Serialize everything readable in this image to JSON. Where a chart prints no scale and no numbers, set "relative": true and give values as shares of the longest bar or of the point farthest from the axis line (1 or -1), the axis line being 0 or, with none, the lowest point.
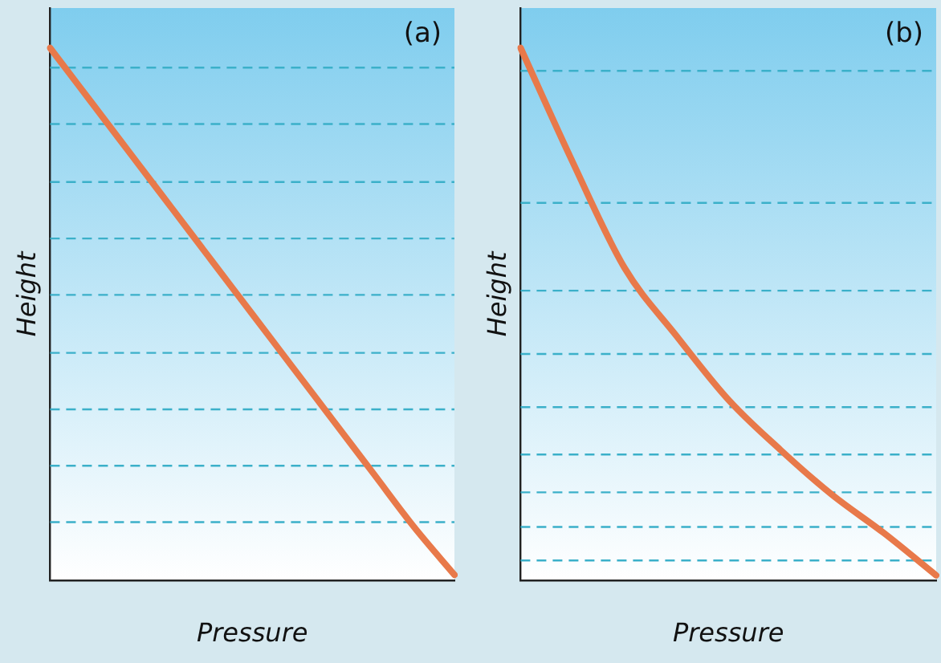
{
  "chart_data": [
    {
      "type": "line",
      "relative": true,
      "xlabel": "Pressure",
      "ylabel": "Height",
      "annotations": [
        "(a)"
      ],
      "marker": "none",
      "grid": false,
      "legend": false,
      "categories": [
        null,
        null,
        null,
        null,
        null,
        null,
        null,
        null,
        null,
        null,
        null
      ],
      "series": [
        {
          "color": "#e8794a",
          "values": [
            1,
            0.9,
            0.8,
            0.7,
            0.6,
            0.5,
            0.4,
            0.3,
            0.2,
            0.1,
            0.01
          ]
        }
      ],
      "ref_lines": [
        {
          "axis": "y",
          "value": 0.963,
          "color": "#3bb0c9",
          "line_style": "dashed"
        },
        {
          "axis": "y",
          "value": 0.857,
          "color": "#3bb0c9",
          "line_style": "dashed"
        },
        {
          "axis": "y",
          "value": 0.748,
          "color": "#3bb0c9",
          "line_style": "dashed"
        },
        {
          "axis": "y",
          "value": 0.642,
          "color": "#3bb0c9",
          "line_style": "dashed"
        },
        {
          "axis": "y",
          "value": 0.536,
          "color": "#3bb0c9",
          "line_style": "dashed"
        },
        {
          "axis": "y",
          "value": 0.427,
          "color": "#3bb0c9",
          "line_style": "dashed"
        },
        {
          "axis": "y",
          "value": 0.321,
          "color": "#3bb0c9",
          "line_style": "dashed"
        },
        {
          "axis": "y",
          "value": 0.215,
          "color": "#3bb0c9",
          "line_style": "dashed"
        },
        {
          "axis": "y",
          "value": 0.109,
          "color": "#3bb0c9",
          "line_style": "dashed"
        }
      ]
    },
    {
      "type": "line",
      "relative": true,
      "xlabel": "Pressure",
      "ylabel": "Height",
      "annotations": [
        "(b)"
      ],
      "marker": "none",
      "grid": false,
      "legend": false,
      "categories": [
        null,
        null,
        null,
        null,
        null,
        null,
        null,
        null,
        null
      ],
      "series": [
        {
          "color": "#e8794a",
          "values": [
            1,
            0.786,
            0.587,
            0.459,
            0.339,
            0.245,
            0.16,
            0.088,
            0.009
          ]
        }
      ],
      "ref_lines": [
        {
          "axis": "y",
          "value": 0.957,
          "color": "#3bb0c9",
          "line_style": "dashed"
        },
        {
          "axis": "y",
          "value": 0.709,
          "color": "#3bb0c9",
          "line_style": "dashed"
        },
        {
          "axis": "y",
          "value": 0.544,
          "color": "#3bb0c9",
          "line_style": "dashed"
        },
        {
          "axis": "y",
          "value": 0.425,
          "color": "#3bb0c9",
          "line_style": "dashed"
        },
        {
          "axis": "y",
          "value": 0.325,
          "color": "#3bb0c9",
          "line_style": "dashed"
        },
        {
          "axis": "y",
          "value": 0.236,
          "color": "#3bb0c9",
          "line_style": "dashed"
        },
        {
          "axis": "y",
          "value": 0.165,
          "color": "#3bb0c9",
          "line_style": "dashed"
        },
        {
          "axis": "y",
          "value": 0.1,
          "color": "#3bb0c9",
          "line_style": "dashed"
        },
        {
          "axis": "y",
          "value": 0.037,
          "color": "#3bb0c9",
          "line_style": "dashed"
        }
      ]
    }
  ]
}
